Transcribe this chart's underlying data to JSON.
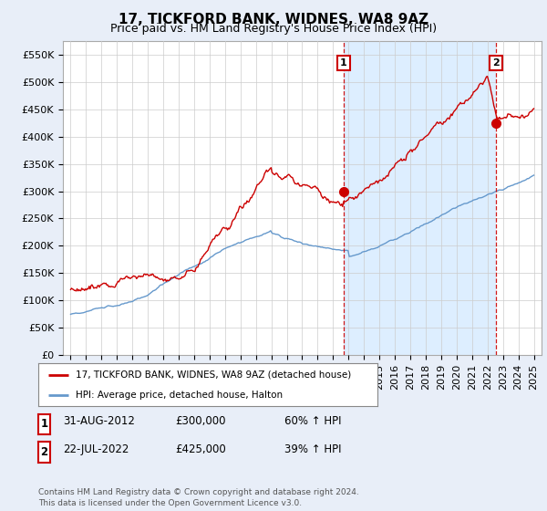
{
  "title": "17, TICKFORD BANK, WIDNES, WA8 9AZ",
  "subtitle": "Price paid vs. HM Land Registry's House Price Index (HPI)",
  "ylim": [
    0,
    575000
  ],
  "yticks": [
    0,
    50000,
    100000,
    150000,
    200000,
    250000,
    300000,
    350000,
    400000,
    450000,
    500000,
    550000
  ],
  "ytick_labels": [
    "£0",
    "£50K",
    "£100K",
    "£150K",
    "£200K",
    "£250K",
    "£300K",
    "£350K",
    "£400K",
    "£450K",
    "£500K",
    "£550K"
  ],
  "legend_entries": [
    "17, TICKFORD BANK, WIDNES, WA8 9AZ (detached house)",
    "HPI: Average price, detached house, Halton"
  ],
  "property_color": "#cc0000",
  "hpi_color": "#6699cc",
  "highlight_color": "#ddeeff",
  "transaction1_date": 2012.67,
  "transaction1_price": 300000,
  "transaction1_label": "1",
  "transaction2_date": 2022.55,
  "transaction2_price": 425000,
  "transaction2_label": "2",
  "vline_color": "#cc0000",
  "table_entries": [
    {
      "label": "1",
      "date": "31-AUG-2012",
      "price": "£300,000",
      "hpi": "60% ↑ HPI"
    },
    {
      "label": "2",
      "date": "22-JUL-2022",
      "price": "£425,000",
      "hpi": "39% ↑ HPI"
    }
  ],
  "footer_text": "Contains HM Land Registry data © Crown copyright and database right 2024.\nThis data is licensed under the Open Government Licence v3.0.",
  "background_color": "#e8eef8",
  "plot_bg_color": "#ffffff",
  "grid_color": "#cccccc",
  "title_fontsize": 11,
  "subtitle_fontsize": 9,
  "tick_fontsize": 8
}
